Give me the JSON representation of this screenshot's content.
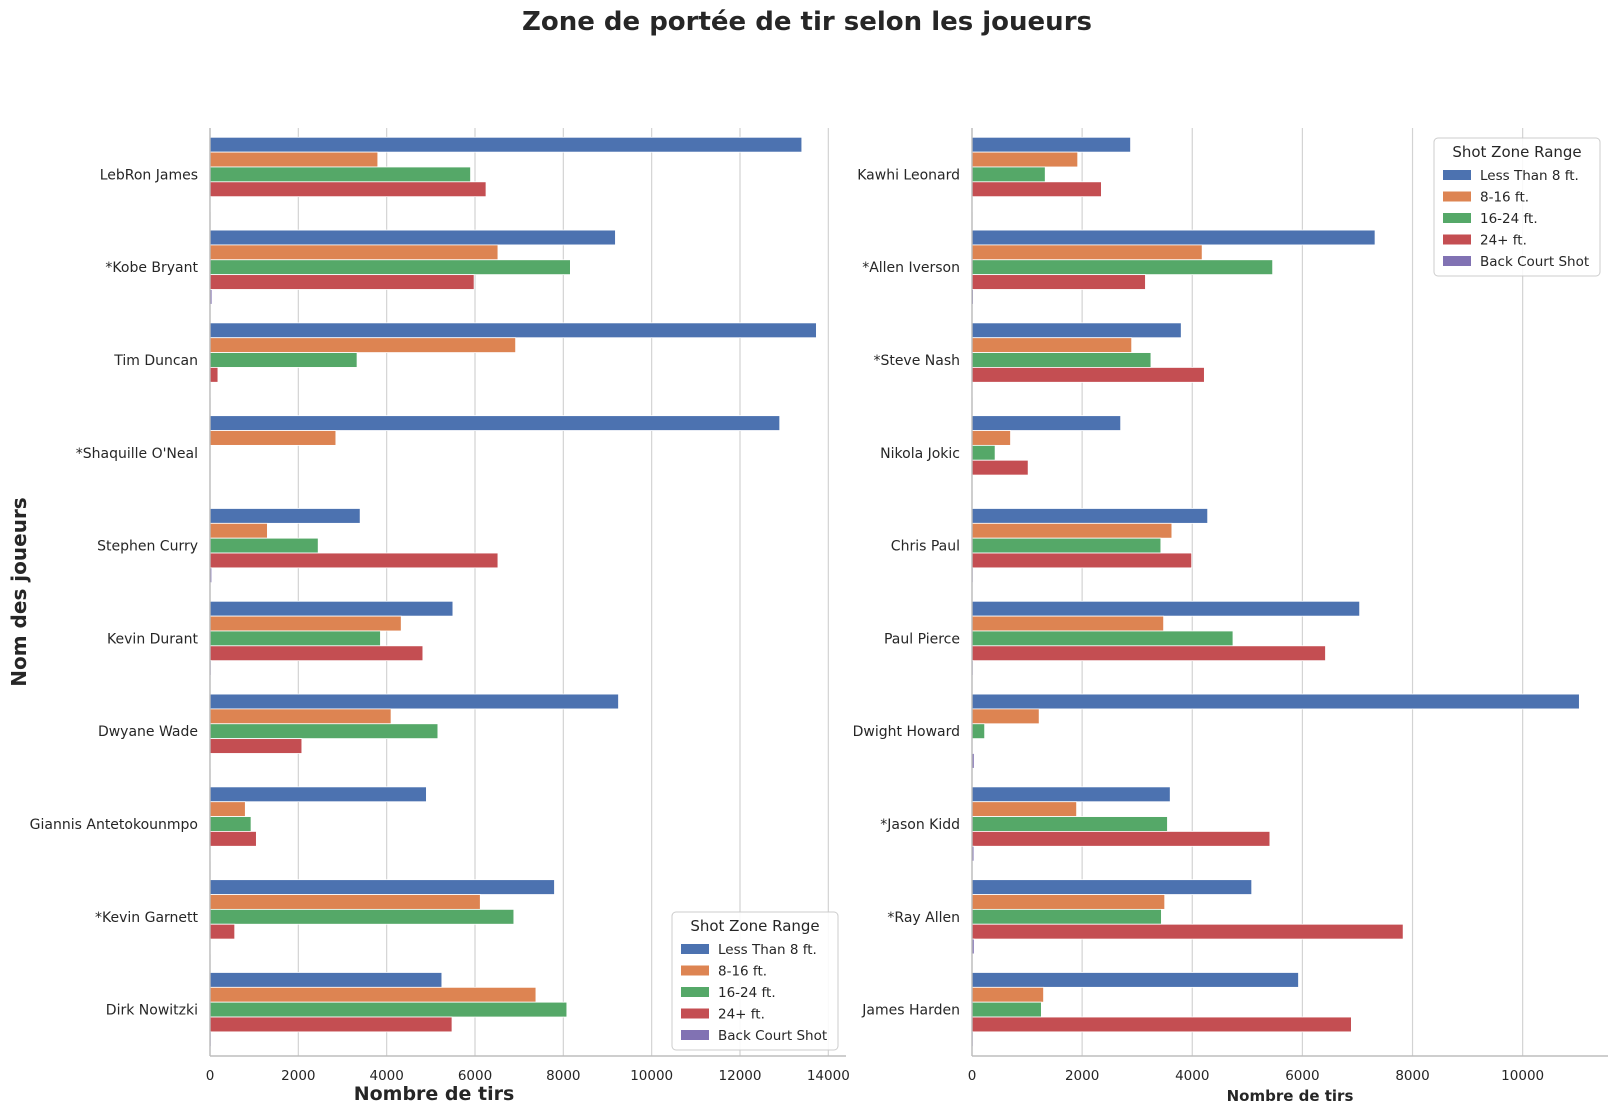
{
  "title": "Zone de portée de tir selon les joueurs",
  "colors": {
    "Less Than 8 ft.": "#4c72b0",
    "8-16 ft.": "#dd8452",
    "16-24 ft.": "#55a868",
    "24+ ft.": "#c44e52",
    "Back Court Shot": "#8172b3"
  },
  "chart_data": [
    {
      "type": "bar",
      "orientation": "horizontal",
      "ylabel": "Nom des joueurs",
      "xlabel": "Nombre de tirs",
      "xlim": [
        0,
        14400
      ],
      "xticks": [
        0,
        2000,
        4000,
        6000,
        8000,
        10000,
        12000,
        14000
      ],
      "grid": "vertical",
      "legend_title": "Shot Zone Range",
      "legend_position": "lower-right",
      "categories": [
        "LebRon James",
        "*Kobe Bryant",
        "Tim Duncan",
        "*Shaquille O'Neal",
        "Stephen Curry",
        "Kevin Durant",
        "Dwyane Wade",
        "Giannis Antetokounmpo",
        "*Kevin Garnett",
        "Dirk Nowitzki"
      ],
      "series": [
        {
          "name": "Less Than 8 ft.",
          "values": [
            13400,
            9180,
            13730,
            12900,
            3400,
            5500,
            9250,
            4900,
            7800,
            5250
          ]
        },
        {
          "name": "8-16 ft.",
          "values": [
            3800,
            6520,
            6920,
            2850,
            1300,
            4330,
            4100,
            800,
            6120,
            7380
          ]
        },
        {
          "name": "16-24 ft.",
          "values": [
            5900,
            8160,
            3330,
            0,
            2450,
            3860,
            5160,
            930,
            6880,
            8080
          ]
        },
        {
          "name": "24+ ft.",
          "values": [
            6250,
            5980,
            180,
            0,
            6520,
            4820,
            2080,
            1050,
            560,
            5480
          ]
        },
        {
          "name": "Back Court Shot",
          "values": [
            20,
            45,
            15,
            5,
            40,
            25,
            20,
            8,
            15,
            25
          ]
        }
      ]
    },
    {
      "type": "bar",
      "orientation": "horizontal",
      "ylabel": "",
      "xlabel": "Nombre de tirs",
      "xlim": [
        0,
        11550
      ],
      "xticks": [
        0,
        2000,
        4000,
        6000,
        8000,
        10000
      ],
      "grid": "vertical",
      "legend_title": "Shot Zone Range",
      "legend_position": "upper-right",
      "categories": [
        "Kawhi Leonard",
        "*Allen Iverson",
        "*Steve Nash",
        "Nikola Jokic",
        "Chris Paul",
        "Paul Pierce",
        "Dwight Howard",
        "*Jason Kidd",
        "*Ray Allen",
        "James Harden"
      ],
      "series": [
        {
          "name": "Less Than 8 ft.",
          "values": [
            2880,
            7320,
            3800,
            2700,
            4280,
            7040,
            11030,
            3600,
            5080,
            5930
          ]
        },
        {
          "name": "8-16 ft.",
          "values": [
            1920,
            4180,
            2900,
            700,
            3630,
            3480,
            1220,
            1900,
            3500,
            1300
          ]
        },
        {
          "name": "16-24 ft.",
          "values": [
            1330,
            5460,
            3250,
            420,
            3430,
            4740,
            230,
            3550,
            3440,
            1260
          ]
        },
        {
          "name": "24+ ft.",
          "values": [
            2350,
            3150,
            4220,
            1020,
            3990,
            6420,
            0,
            5410,
            7830,
            6890
          ]
        },
        {
          "name": "Back Court Shot",
          "values": [
            10,
            25,
            15,
            10,
            20,
            20,
            40,
            35,
            40,
            20
          ]
        }
      ]
    }
  ]
}
